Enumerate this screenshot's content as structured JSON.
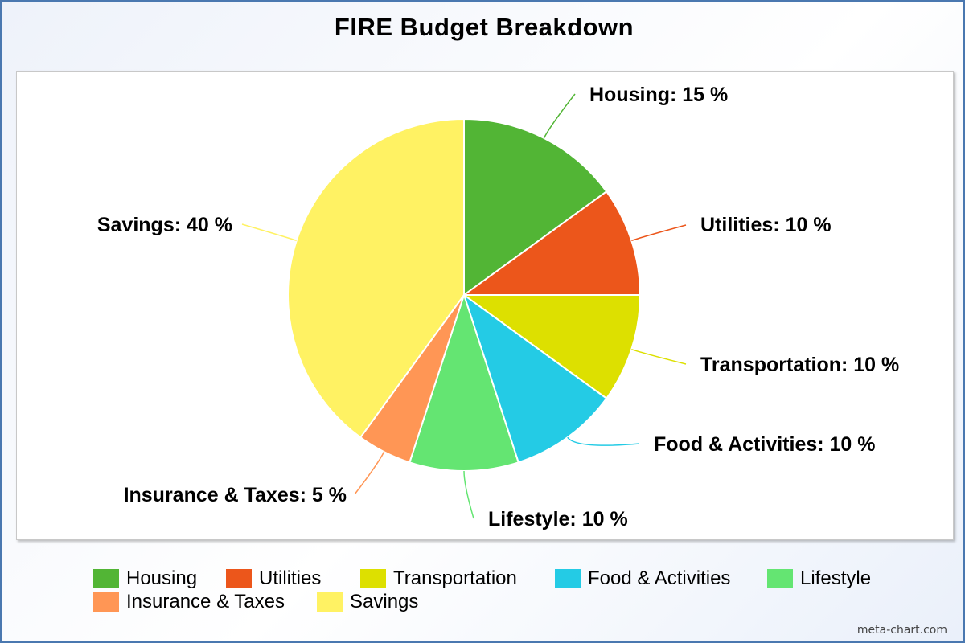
{
  "title": "FIRE Budget Breakdown",
  "watermark": "meta-chart.com",
  "chart_data": {
    "type": "pie",
    "title": "FIRE Budget Breakdown",
    "unit": "%",
    "legend_position": "bottom",
    "start_angle_deg": 0,
    "direction": "clockwise",
    "slices": [
      {
        "label": "Housing",
        "value": 15,
        "color": "#52b535",
        "label_text": "Housing: 15 %"
      },
      {
        "label": "Utilities",
        "value": 10,
        "color": "#ec561b",
        "label_text": "Utilities: 10 %"
      },
      {
        "label": "Transportation",
        "value": 10,
        "color": "#dde000",
        "label_text": "Transportation: 10 %"
      },
      {
        "label": "Food & Activities",
        "value": 10,
        "color": "#24cbe5",
        "label_text": "Food & Activities: 10 %"
      },
      {
        "label": "Lifestyle",
        "value": 10,
        "color": "#64e572",
        "label_text": "Lifestyle: 10 %"
      },
      {
        "label": "Insurance & Taxes",
        "value": 5,
        "color": "#ff9655",
        "label_text": "Insurance & Taxes: 5 %"
      },
      {
        "label": "Savings",
        "value": 40,
        "color": "#fff263",
        "label_text": "Savings: 40 %"
      }
    ]
  }
}
